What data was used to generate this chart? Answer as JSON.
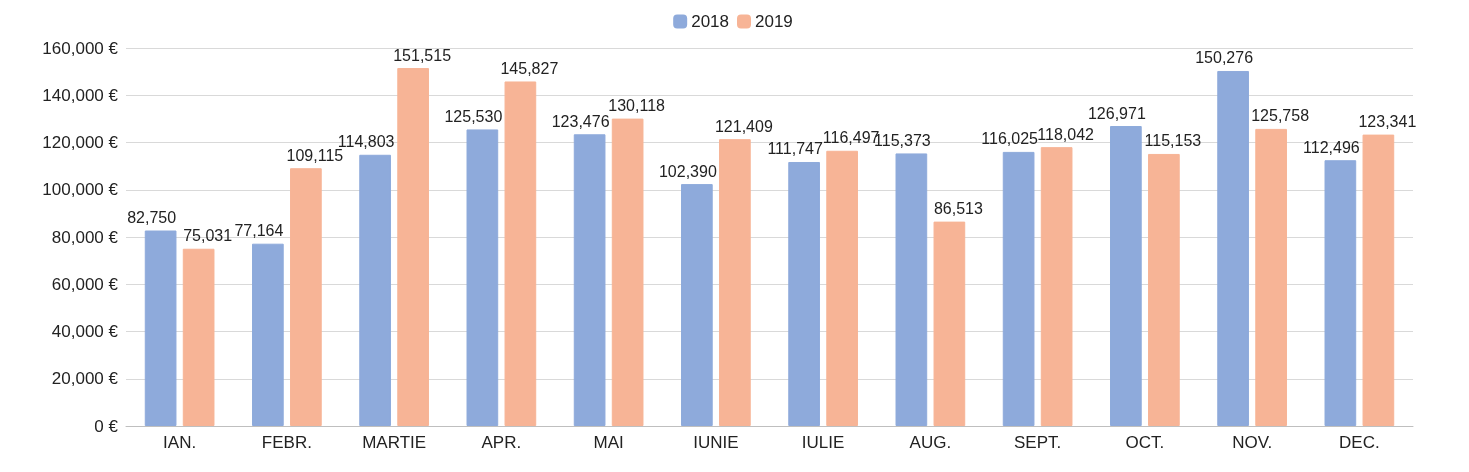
{
  "chart_data": {
    "type": "bar",
    "categories": [
      "IAN.",
      "FEBR.",
      "MARTIE",
      "APR.",
      "MAI",
      "IUNIE",
      "IULIE",
      "AUG.",
      "SEPT.",
      "OCT.",
      "NOV.",
      "DEC."
    ],
    "series": [
      {
        "name": "2018",
        "color": "#8eaadb",
        "values": [
          82750,
          77164,
          114803,
          125530,
          123476,
          102390,
          111747,
          115373,
          116025,
          126971,
          150276,
          112496
        ],
        "value_labels": [
          "82,750",
          "77,164",
          "114,803",
          "125,530",
          "123,476",
          "102,390",
          "111,747",
          "115,373",
          "116,025",
          "126,971",
          "150,276",
          "112,496"
        ]
      },
      {
        "name": "2019",
        "color": "#f7b496",
        "values": [
          75031,
          109115,
          151515,
          145827,
          130118,
          121409,
          116497,
          86513,
          118042,
          115153,
          125758,
          123341
        ],
        "value_labels": [
          "75,031",
          "109,115",
          "151,515",
          "145,827",
          "130,118",
          "121,409",
          "116,497",
          "86,513",
          "118,042",
          "115,153",
          "125,758",
          "123,341"
        ]
      }
    ],
    "ylim": [
      0,
      160000
    ],
    "yticks": [
      {
        "value": 0,
        "label": "0 €"
      },
      {
        "value": 20000,
        "label": "20,000 €"
      },
      {
        "value": 40000,
        "label": "40,000 €"
      },
      {
        "value": 60000,
        "label": "60,000 €"
      },
      {
        "value": 80000,
        "label": "80,000 €"
      },
      {
        "value": 100000,
        "label": "100,000 €"
      },
      {
        "value": 120000,
        "label": "120,000 €"
      },
      {
        "value": 140000,
        "label": "140,000 €"
      },
      {
        "value": 160000,
        "label": "160,000 €"
      }
    ],
    "grid": "y",
    "legend": "top"
  }
}
